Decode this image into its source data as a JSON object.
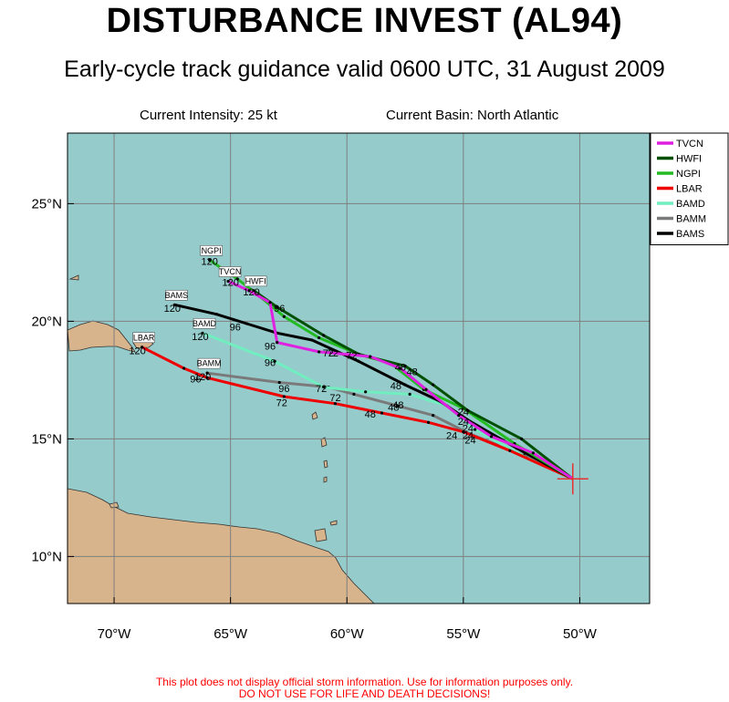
{
  "header": {
    "title": "DISTURBANCE INVEST (AL94)",
    "subtitle": "Early-cycle track guidance valid 0600 UTC, 31 August 2009"
  },
  "info": {
    "intensity": "Current Intensity: 25 kt",
    "basin": "Current Basin: North Atlantic"
  },
  "axes": {
    "x_ticks": [
      {
        "lon": -70,
        "label": "70°W"
      },
      {
        "lon": -65,
        "label": "65°W"
      },
      {
        "lon": -60,
        "label": "60°W"
      },
      {
        "lon": -55,
        "label": "55°W"
      },
      {
        "lon": -50,
        "label": "50°W"
      }
    ],
    "y_ticks": [
      {
        "lat": 10,
        "label": "10°N"
      },
      {
        "lat": 15,
        "label": "15°N"
      },
      {
        "lat": 20,
        "label": "20°N"
      },
      {
        "lat": 25,
        "label": "25°N"
      }
    ],
    "lon_range": [
      -72,
      -47
    ],
    "lat_range": [
      8,
      28
    ]
  },
  "colors": {
    "ocean": "#96cbcb",
    "land": "#d7b48c",
    "grid": "#7f7f7f",
    "current_position": "#e83030"
  },
  "current_position": {
    "lon": -50.3,
    "lat": 13.3
  },
  "chart_data": {
    "type": "line",
    "series": [
      {
        "name": "TVCN",
        "color": "#e020e0",
        "label_at": "120",
        "track": [
          [
            -50.3,
            13.3
          ],
          [
            -52.0,
            14.4
          ],
          [
            -53.8,
            15.1
          ],
          [
            -55.2,
            16.0
          ],
          [
            -56.6,
            17.1
          ],
          [
            -57.7,
            18.0
          ],
          [
            -59.0,
            18.5
          ],
          [
            -61.2,
            18.7
          ],
          [
            -63.0,
            19.1
          ],
          [
            -63.3,
            20.8
          ],
          [
            -64.2,
            21.3
          ],
          [
            -65.1,
            21.7
          ]
        ],
        "hour_labels": [
          {
            "text": "24",
            "lon": -54.8,
            "lat": 15.0
          },
          {
            "text": "48",
            "lon": -57.2,
            "lat": 17.7
          },
          {
            "text": "72",
            "lon": -60.8,
            "lat": 18.5
          },
          {
            "text": "96",
            "lon": -63.3,
            "lat": 18.8
          },
          {
            "text": "120",
            "lon": -65.0,
            "lat": 21.5
          }
        ]
      },
      {
        "name": "HWFI",
        "color": "#005000",
        "label_at": "120",
        "track": [
          [
            -50.3,
            13.3
          ],
          [
            -52.5,
            15.0
          ],
          [
            -54.8,
            16.2
          ],
          [
            -56.3,
            17.3
          ],
          [
            -57.5,
            18.1
          ],
          [
            -59.5,
            18.6
          ],
          [
            -61.0,
            19.4
          ],
          [
            -63.0,
            20.6
          ],
          [
            -64.0,
            21.3
          ]
        ],
        "hour_labels": [
          {
            "text": "24",
            "lon": -55.0,
            "lat": 16.0
          },
          {
            "text": "48",
            "lon": -57.7,
            "lat": 17.9
          },
          {
            "text": "72",
            "lon": -59.8,
            "lat": 18.4
          },
          {
            "text": "96",
            "lon": -62.9,
            "lat": 20.4
          },
          {
            "text": "120",
            "lon": -64.1,
            "lat": 21.1
          }
        ]
      },
      {
        "name": "NGPI",
        "color": "#22bb22",
        "label_at": "120",
        "track": [
          [
            -50.3,
            13.3
          ],
          [
            -52.8,
            14.8
          ],
          [
            -55.0,
            16.3
          ],
          [
            -56.7,
            17.1
          ],
          [
            -58.1,
            18.2
          ],
          [
            -59.5,
            18.6
          ],
          [
            -61.2,
            19.3
          ],
          [
            -62.7,
            20.2
          ],
          [
            -63.8,
            21.1
          ],
          [
            -64.7,
            21.8
          ],
          [
            -65.9,
            22.6
          ]
        ],
        "hour_labels": [
          {
            "text": "120",
            "lon": -65.9,
            "lat": 22.4
          }
        ]
      },
      {
        "name": "LBAR",
        "color": "#ee0000",
        "label_at": "120",
        "track": [
          [
            -50.3,
            13.3
          ],
          [
            -53.0,
            14.5
          ],
          [
            -55.0,
            15.3
          ],
          [
            -56.5,
            15.7
          ],
          [
            -58.5,
            16.1
          ],
          [
            -60.5,
            16.5
          ],
          [
            -62.7,
            16.8
          ],
          [
            -66.0,
            17.6
          ],
          [
            -67.0,
            18.0
          ],
          [
            -68.8,
            18.9
          ]
        ],
        "hour_labels": [
          {
            "text": "24",
            "lon": -55.5,
            "lat": 15.0
          },
          {
            "text": "48",
            "lon": -59.0,
            "lat": 15.9
          },
          {
            "text": "72",
            "lon": -62.8,
            "lat": 16.4
          },
          {
            "text": "96",
            "lon": -66.5,
            "lat": 17.4
          },
          {
            "text": "120",
            "lon": -69.0,
            "lat": 18.6
          }
        ]
      },
      {
        "name": "BAMD",
        "color": "#70eec0",
        "label_at": "120",
        "track": [
          [
            -50.3,
            13.3
          ],
          [
            -52.3,
            14.2
          ],
          [
            -54.5,
            15.4
          ],
          [
            -55.7,
            16.4
          ],
          [
            -57.3,
            16.9
          ],
          [
            -59.2,
            17.0
          ],
          [
            -61.0,
            17.2
          ],
          [
            -63.1,
            18.3
          ],
          [
            -66.2,
            19.5
          ]
        ],
        "hour_labels": [
          {
            "text": "24",
            "lon": -54.7,
            "lat": 14.8
          },
          {
            "text": "48",
            "lon": -57.8,
            "lat": 16.3
          },
          {
            "text": "72",
            "lon": -60.5,
            "lat": 16.6
          },
          {
            "text": "96",
            "lon": -63.3,
            "lat": 18.1
          },
          {
            "text": "120",
            "lon": -66.3,
            "lat": 19.2
          }
        ]
      },
      {
        "name": "BAMM",
        "color": "#7a7a7a",
        "label_at": "120",
        "track": [
          [
            -50.3,
            13.3
          ],
          [
            -52.4,
            14.3
          ],
          [
            -54.7,
            15.2
          ],
          [
            -56.3,
            16.0
          ],
          [
            -57.8,
            16.4
          ],
          [
            -59.7,
            16.9
          ],
          [
            -60.8,
            17.2
          ],
          [
            -62.9,
            17.4
          ],
          [
            -66.0,
            17.8
          ]
        ],
        "hour_labels": [
          {
            "text": "24",
            "lon": -54.8,
            "lat": 15.3
          },
          {
            "text": "48",
            "lon": -58.0,
            "lat": 16.2
          },
          {
            "text": "72",
            "lon": -61.1,
            "lat": 17.0
          },
          {
            "text": "96",
            "lon": -62.7,
            "lat": 17.0
          },
          {
            "text": "120",
            "lon": -66.2,
            "lat": 17.5
          }
        ]
      },
      {
        "name": "BAMS",
        "color": "#000000",
        "label_at": "120",
        "track": [
          [
            -50.3,
            13.3
          ],
          [
            -52.7,
            14.6
          ],
          [
            -54.8,
            15.8
          ],
          [
            -56.0,
            16.6
          ],
          [
            -57.5,
            17.3
          ],
          [
            -59.5,
            18.3
          ],
          [
            -61.5,
            19.2
          ],
          [
            -63.0,
            19.5
          ],
          [
            -64.3,
            19.9
          ],
          [
            -65.6,
            20.3
          ],
          [
            -67.4,
            20.7
          ]
        ],
        "hour_labels": [
          {
            "text": "24",
            "lon": -55.0,
            "lat": 15.6
          },
          {
            "text": "48",
            "lon": -57.9,
            "lat": 17.1
          },
          {
            "text": "72",
            "lon": -60.6,
            "lat": 18.5
          },
          {
            "text": "96",
            "lon": -64.8,
            "lat": 19.6
          },
          {
            "text": "120",
            "lon": -67.5,
            "lat": 20.4
          }
        ]
      }
    ]
  },
  "disclaimer": {
    "line1": "This plot does not display official storm information. Use for information purposes only.",
    "line2": "DO NOT USE FOR LIFE AND DEATH DECISIONS!"
  }
}
